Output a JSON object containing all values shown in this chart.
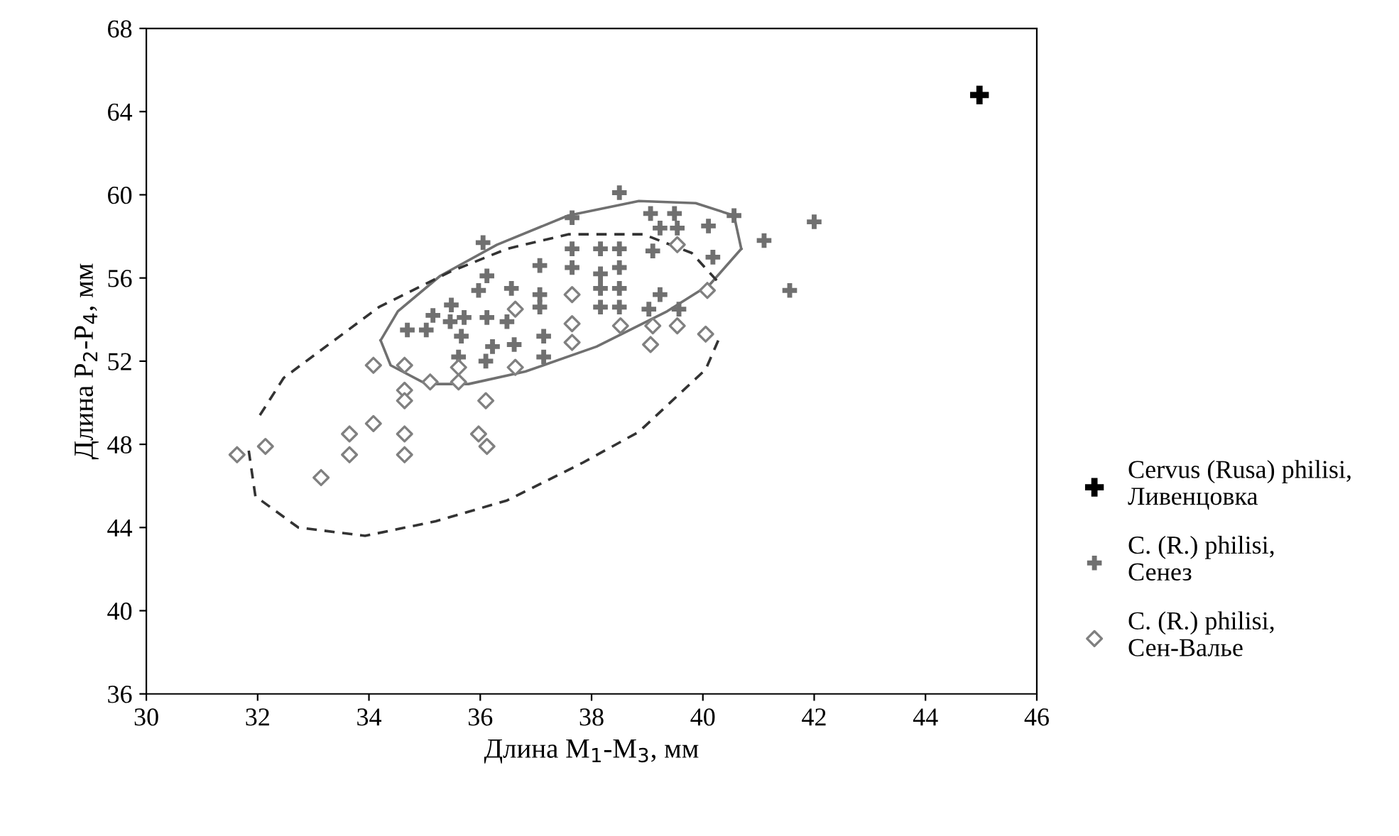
{
  "chart_data": {
    "type": "scatter",
    "xlabel": "Длина M$_{1}$-M$_{3}$, мм",
    "ylabel": "Длина P$_{2}$-P$_{4}$, мм",
    "xlim": [
      30,
      46
    ],
    "ylim": [
      36,
      68
    ],
    "xticks": [
      30,
      32,
      34,
      36,
      38,
      40,
      42,
      44,
      46
    ],
    "yticks": [
      36,
      40,
      44,
      48,
      52,
      56,
      60,
      64,
      68
    ],
    "grid": false,
    "legend": "right",
    "series": [
      {
        "name": "Cervus (Rusa) philisi,\nЛивенцовка",
        "color": "#000000",
        "marker": "cross",
        "x": [
          44.97
        ],
        "values": [
          64.8
        ]
      },
      {
        "name": "C. (R.) philisi,\nСенез",
        "color": "#707070",
        "marker": "cross",
        "x": [
          38.5,
          37.65,
          36.05,
          37.65,
          38.16,
          38.5,
          37.07,
          37.65,
          38.16,
          38.5,
          36.12,
          36.56,
          35.97,
          37.07,
          37.07,
          38.16,
          38.16,
          38.5,
          38.5,
          35.48,
          35.15,
          35.71,
          34.69,
          35.03,
          35.46,
          36.12,
          36.48,
          35.66,
          36.22,
          36.61,
          37.14,
          37.14,
          35.61,
          36.1,
          39.06,
          39.49,
          39.23,
          39.54,
          40.1,
          40.56,
          42.0,
          41.1,
          39.1,
          40.18,
          41.56,
          39.23,
          39.03,
          39.57
        ],
        "values": [
          60.1,
          58.9,
          57.7,
          57.4,
          57.4,
          57.4,
          56.6,
          56.5,
          56.2,
          56.5,
          56.1,
          55.5,
          55.4,
          55.2,
          54.6,
          55.5,
          54.6,
          55.5,
          54.6,
          54.7,
          54.2,
          54.1,
          53.5,
          53.5,
          53.9,
          54.1,
          53.9,
          53.2,
          52.7,
          52.8,
          53.2,
          52.2,
          52.2,
          52.0,
          59.1,
          59.1,
          58.4,
          58.4,
          58.5,
          59.0,
          58.7,
          57.8,
          57.3,
          57.0,
          55.4,
          55.2,
          54.5,
          54.5
        ]
      },
      {
        "name": "C. (R.) philisi,\nСен-Валье",
        "color": "#808080",
        "marker": "diamond",
        "x": [
          36.63,
          37.65,
          37.65,
          37.65,
          34.08,
          34.64,
          35.61,
          35.1,
          35.61,
          36.63,
          34.64,
          34.64,
          36.1,
          34.08,
          33.65,
          34.64,
          35.97,
          36.12,
          33.65,
          34.64,
          33.14,
          32.14,
          31.63,
          39.54,
          40.08,
          38.52,
          39.1,
          39.54,
          39.06,
          40.05
        ],
        "values": [
          54.5,
          55.2,
          53.8,
          52.9,
          51.8,
          51.8,
          51.7,
          51.0,
          51.0,
          51.7,
          50.6,
          50.1,
          50.1,
          49.0,
          48.5,
          48.5,
          48.5,
          47.9,
          47.5,
          47.5,
          46.4,
          47.9,
          47.5,
          57.6,
          55.4,
          53.7,
          53.7,
          53.7,
          52.8,
          53.3
        ]
      },
      {
        "type": "line",
        "color": "#707070",
        "line_style": "solid",
        "marker": "none",
        "x": [
          34.21,
          34.52,
          35.28,
          36.3,
          37.58,
          38.85,
          39.87,
          40.56,
          40.69
        ],
        "values": [
          53.0,
          54.4,
          56.1,
          57.6,
          59.0,
          59.7,
          59.6,
          59.0,
          57.4
        ]
      },
      {
        "type": "line",
        "color": "#707070",
        "line_style": "solid",
        "marker": "none",
        "x": [
          34.21,
          34.39,
          35.03,
          35.79,
          36.81,
          38.09,
          39.36,
          40.13,
          40.69
        ],
        "values": [
          53.0,
          51.8,
          50.9,
          50.9,
          51.5,
          52.7,
          54.4,
          55.7,
          57.4
        ]
      },
      {
        "type": "line",
        "color": "#333333",
        "line_style": "dashed",
        "marker": "none",
        "x": [
          32.04,
          32.47,
          34.18,
          35.46,
          36.48,
          37.58,
          38.93,
          39.8,
          40.31
        ],
        "values": [
          49.4,
          51.2,
          54.6,
          56.3,
          57.4,
          58.1,
          58.1,
          57.2,
          55.7
        ]
      },
      {
        "type": "line",
        "color": "#333333",
        "line_style": "dashed",
        "marker": "none",
        "x": [
          31.84,
          31.96,
          32.73,
          33.93,
          35.2,
          36.48,
          37.83,
          38.85,
          40.05,
          40.31
        ],
        "values": [
          47.7,
          45.5,
          44.0,
          43.6,
          44.3,
          45.3,
          47.1,
          48.6,
          51.6,
          53.2
        ]
      }
    ]
  }
}
